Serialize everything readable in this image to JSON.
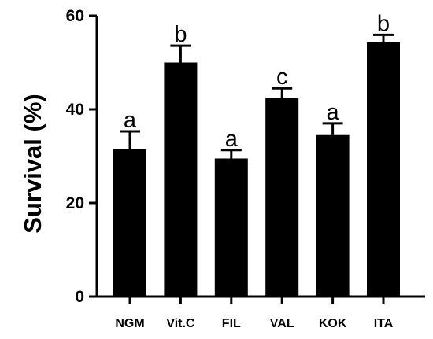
{
  "chart_data": {
    "type": "bar",
    "title": "",
    "xlabel": "",
    "ylabel": "Survival  (%)",
    "ylim": [
      0,
      60
    ],
    "yticks": [
      0,
      20,
      40,
      60
    ],
    "grid": false,
    "colors": {
      "bar": "#000000",
      "axis": "#000000"
    },
    "categories": [
      "NGM",
      "Vit.C",
      "FIL",
      "VAL",
      "KOK",
      "ITA"
    ],
    "values": [
      31.5,
      50.0,
      29.5,
      42.5,
      34.5,
      54.3
    ],
    "errors": [
      3.8,
      3.6,
      1.8,
      2.0,
      2.5,
      1.6
    ],
    "letters": [
      "a",
      "b",
      "a",
      "c",
      "a",
      "b"
    ]
  }
}
